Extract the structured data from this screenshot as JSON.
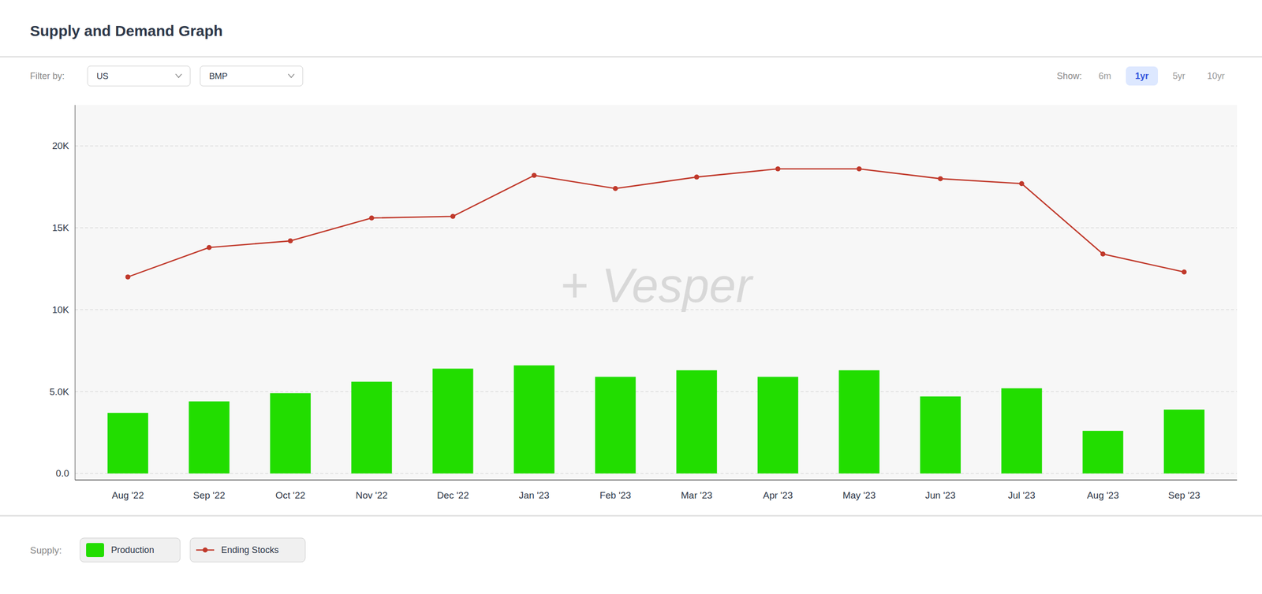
{
  "chart_data": {
    "type": "bar",
    "title": "Supply and Demand Graph",
    "annotations": {
      "filter_label": "Filter by:",
      "filters": [
        "US",
        "BMP"
      ],
      "show_label": "Show:",
      "show_options": [
        "6m",
        "1yr",
        "5yr",
        "10yr"
      ],
      "show_selected": "1yr",
      "watermark": "+ Vesper"
    },
    "legend_title": "Supply:",
    "categories": [
      "Aug '22",
      "Sep '22",
      "Oct '22",
      "Nov '22",
      "Dec '22",
      "Jan '23",
      "Feb '23",
      "Mar '23",
      "Apr '23",
      "May '23",
      "Jun '23",
      "Jul '23",
      "Aug '23",
      "Sep '23"
    ],
    "series": [
      {
        "name": "Production",
        "type": "bar",
        "color": "#22dd00",
        "values": [
          3700,
          4400,
          4900,
          5600,
          6400,
          6600,
          5900,
          6300,
          5900,
          6300,
          4700,
          5200,
          2600,
          3900
        ]
      },
      {
        "name": "Ending Stocks",
        "type": "line",
        "color": "#c0392b",
        "marker": "circle",
        "values": [
          12000,
          13800,
          14200,
          15600,
          15700,
          18200,
          17400,
          18100,
          18600,
          18600,
          18000,
          17700,
          13400,
          12300
        ]
      }
    ],
    "ylim": [
      -400,
      22500
    ],
    "yticks": [
      {
        "value": 0,
        "label": "0.0"
      },
      {
        "value": 5000,
        "label": "5.0K"
      },
      {
        "value": 10000,
        "label": "10K"
      },
      {
        "value": 15000,
        "label": "15K"
      },
      {
        "value": 20000,
        "label": "20K"
      }
    ],
    "grid": true,
    "legend": "bottom"
  }
}
